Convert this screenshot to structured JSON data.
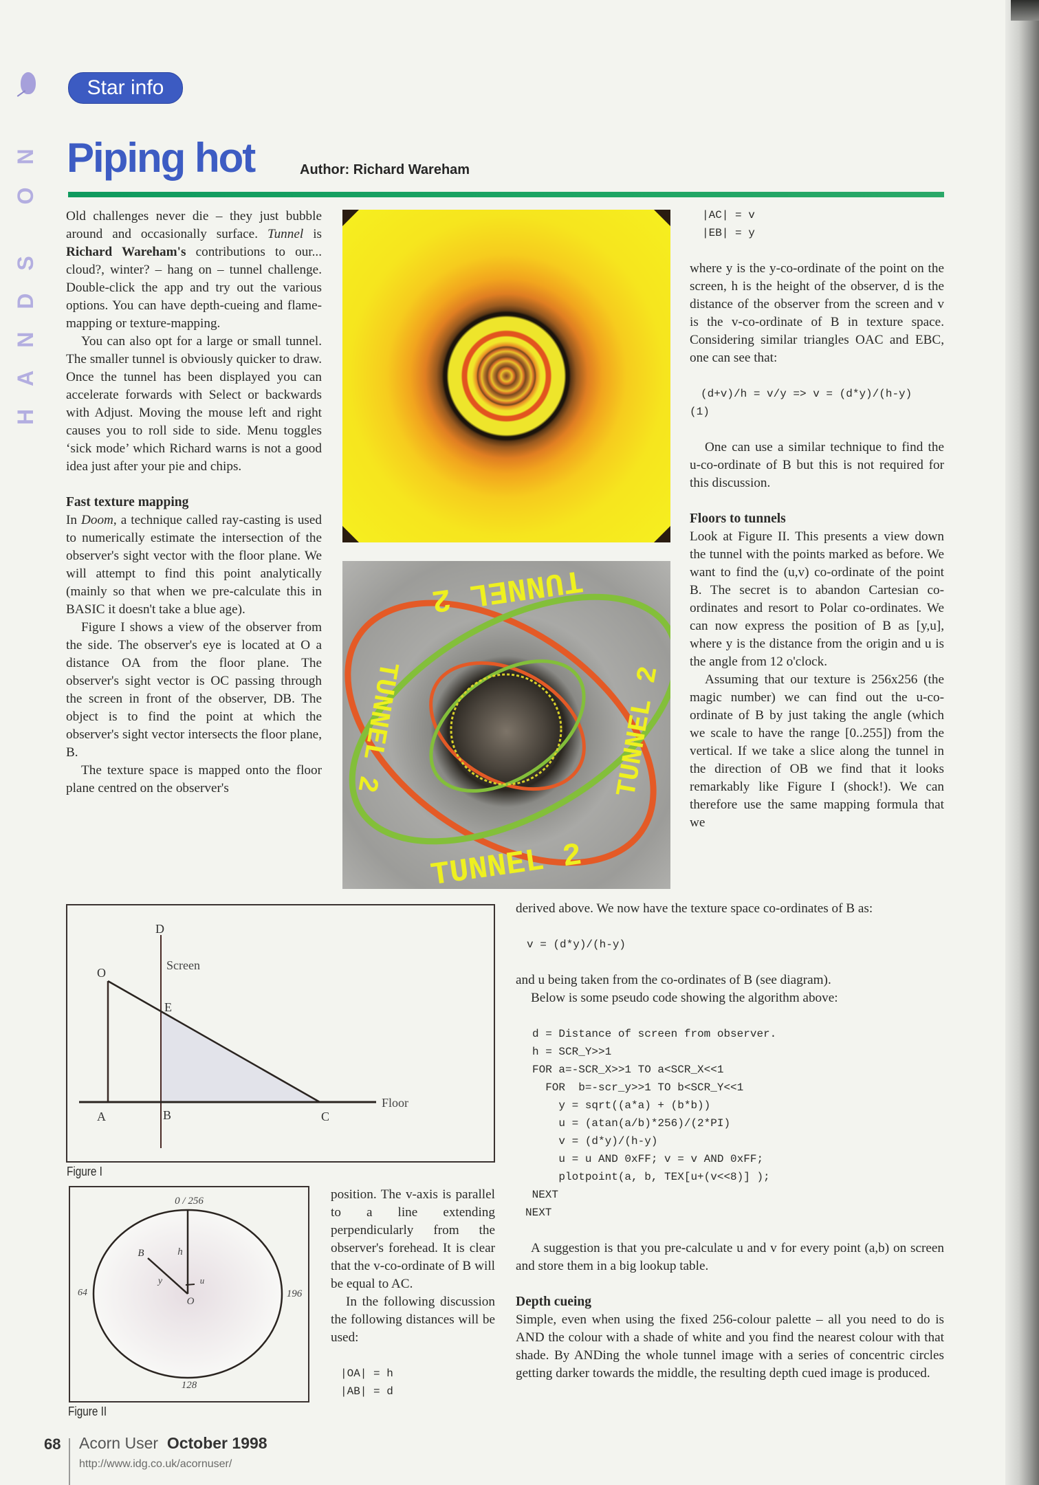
{
  "side_banner": {
    "label": "HANDS ON"
  },
  "header": {
    "badge": "Star info",
    "title": "Piping hot",
    "author": "Author: Richard Wareham",
    "rule_color": "#1aa062",
    "accent_color": "#3d5cc3"
  },
  "left_column": {
    "intro_p1_parts": [
      "Old challenges never die – they just bubble around and occasionally surface. ",
      "Tunnel",
      " is ",
      "Richard Wareham's",
      " contributions to our... cloud?, winter? – hang on – tunnel challenge. Double-click the app and try out the various options. You can have depth-cueing and flame-mapping or texture-mapping."
    ],
    "intro_p2": "You can also opt for a large or small tunnel. The smaller tunnel is obviously quicker to draw. Once the tunnel has been displayed you can accelerate forwards with Select or backwards with Adjust. Moving the mouse left and right causes you to roll side to side. Menu toggles ‘sick mode’ which Richard warns is not a good idea just after your pie and chips.",
    "heading": "Fast texture mapping",
    "ftm_p1_parts": [
      "In ",
      "Doom",
      ", a technique called ray-casting is used to numerically estimate the intersection of the observer's sight vector with the floor plane. We will attempt to find this point analytically (mainly so that when we pre-calculate this in BASIC it doesn't take a blue age)."
    ],
    "ftm_p2": "Figure I shows a view of the observer from the side. The observer's eye is located at O a distance OA from the floor plane. The observer's sight vector is OC passing through the screen in front of the observer, DB.  The object is to find the point at which the observer's sight vector intersects the floor plane, B.",
    "ftm_p3": "The texture space is mapped onto the floor plane centred on the observer's"
  },
  "middle_column": {
    "p1": "position. The v-axis is parallel to a line extending perpendicularly from the observer's forehead. It is clear that the v-co-ordinate of B will be equal to AC.",
    "p2": "In the following discussion the following distances will be used:",
    "eq1": "|OA| = h",
    "eq2": "|AB| = d"
  },
  "right_column": {
    "eq1": "|AC| = v",
    "eq2": "|EB| = y",
    "p1": "where y is the y-co-ordinate of the point on the screen, h is the height of the observer, d is the distance of the observer from the screen and v is the v-co-ordinate of B in texture space. Considering similar triangles OAC and EBC, one can see that:",
    "formula": "(d+v)/h = v/y => v = (d*y)/(h-y)",
    "formula_num": "(1)",
    "p2": "One can use a similar technique to find the u-co-ordinate of B but this is not required for this discussion.",
    "heading": "Floors to tunnels",
    "p3": "Look at Figure II. This presents a view down the tunnel with the points marked as before. We want to find the (u,v) co-ordinate of the point B. The secret is to abandon Cartesian co-ordinates and resort to Polar co-ordinates. We can now express the position of B as [y,u], where y is the distance from the origin and u is the angle from 12 o'clock.",
    "p4": "Assuming that our texture is 256x256 (the magic number) we can find out the u-co-ordinate of B by just taking the angle (which we scale to have the range [0..255]) from the vertical. If we take a slice along the tunnel in the direction of OB we find that it looks remarkably like Figure I (shock!). We can therefore use the same mapping formula that we"
  },
  "wide_column": {
    "p1": "derived above. We now have the texture space co-ordinates of B as:",
    "formula": "v = (d*y)/(h-y)",
    "p2": "and u being taken from the co-ordinates of B (see diagram).",
    "p3": "Below is some pseudo code showing the algorithm above:",
    "code": [
      "d = Distance of screen from observer.",
      "h = SCR_Y>>1",
      "FOR a=-SCR_X>>1 TO a<SCR_X<<1",
      "  FOR  b=-scr_y>>1 TO b<SCR_Y<<1",
      "    y = sqrt((a*a) + (b*b))",
      "    u = (atan(a/b)*256)/(2*PI)",
      "    v = (d*y)/(h-y)",
      "    u = u AND 0xFF; v = v AND 0xFF;",
      "    plotpoint(a, b, TEX[u+(v<<8)] );",
      " NEXT",
      "NEXT"
    ],
    "p4": "A suggestion is that you pre-calculate u and v for every point (a,b) on screen and store them in a big lookup table.",
    "heading": "Depth cueing",
    "p5": "Simple, even when using the fixed 256-colour palette – all you need to do is AND the colour with a shade of white and you find the nearest colour with that shade. By ANDing the whole tunnel image with a series of concentric circles getting darker towards the middle, the resulting depth cued image is produced."
  },
  "figure1": {
    "caption": "Figure I",
    "labels": {
      "D": "D",
      "screen": "Screen",
      "O": "O",
      "E": "E",
      "A": "A",
      "B": "B",
      "C": "C",
      "floor": "Floor"
    }
  },
  "figure2": {
    "caption": "Figure II",
    "labels": {
      "top": "0 / 256",
      "B": "B",
      "h": "h",
      "y": "y",
      "u": "u",
      "left": "64",
      "right": "196",
      "O": "O",
      "bottom": "128"
    }
  },
  "images": {
    "tunnel_texture_text": "TUNNEL 2"
  },
  "footer": {
    "page_number": "68",
    "magazine": "Acorn User",
    "issue": "October 1998",
    "url": "http://www.idg.co.uk/acornuser/"
  }
}
